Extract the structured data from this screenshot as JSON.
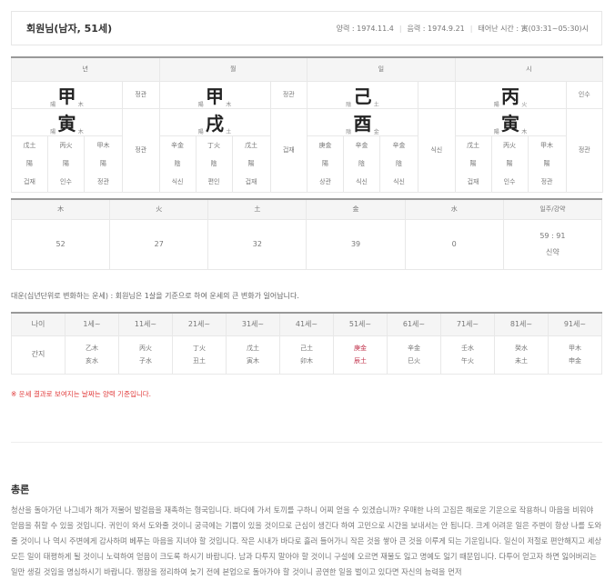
{
  "header": {
    "name": "회원님(남자, 51세)",
    "solar": "양력 : 1974.11.4",
    "lunar": "음력 : 1974.9.21",
    "birth_time": "태어난 시간 : 寅(03:31~05:30)시"
  },
  "pillars": [
    {
      "title": "년",
      "stem": "甲",
      "stem_yy": "陽",
      "stem_el": "木",
      "stem_god": "정관",
      "branch": "寅",
      "branch_yy": "陽",
      "branch_el": "木",
      "branch_god": "정관",
      "hidden": [
        {
          "gan": "戊土",
          "yy": "陽",
          "god": "겁재"
        },
        {
          "gan": "丙火",
          "yy": "陽",
          "god": "인수"
        },
        {
          "gan": "甲木",
          "yy": "陽",
          "god": "정관"
        }
      ]
    },
    {
      "title": "월",
      "stem": "甲",
      "stem_yy": "陽",
      "stem_el": "木",
      "stem_god": "정관",
      "branch": "戌",
      "branch_yy": "陽",
      "branch_el": "土",
      "branch_god": "겁재",
      "hidden": [
        {
          "gan": "辛金",
          "yy": "陰",
          "god": "식신"
        },
        {
          "gan": "丁火",
          "yy": "陰",
          "god": "편인"
        },
        {
          "gan": "戊土",
          "yy": "陽",
          "god": "겁재"
        }
      ]
    },
    {
      "title": "일",
      "stem": "己",
      "stem_yy": "陰",
      "stem_el": "土",
      "stem_god": "",
      "branch": "酉",
      "branch_yy": "陰",
      "branch_el": "金",
      "branch_god": "식신",
      "hidden": [
        {
          "gan": "庚金",
          "yy": "陽",
          "god": "상관"
        },
        {
          "gan": "辛金",
          "yy": "陰",
          "god": "식신"
        },
        {
          "gan": "辛金",
          "yy": "陰",
          "god": "식신"
        }
      ]
    },
    {
      "title": "시",
      "stem": "丙",
      "stem_yy": "陽",
      "stem_el": "火",
      "stem_god": "인수",
      "branch": "寅",
      "branch_yy": "陽",
      "branch_el": "木",
      "branch_god": "정관",
      "hidden": [
        {
          "gan": "戊土",
          "yy": "陽",
          "god": "겁재"
        },
        {
          "gan": "丙火",
          "yy": "陽",
          "god": "인수"
        },
        {
          "gan": "甲木",
          "yy": "陽",
          "god": "정관"
        }
      ]
    }
  ],
  "elements": {
    "headers": [
      "木",
      "火",
      "土",
      "金",
      "水",
      "일주/강약"
    ],
    "values": [
      "52",
      "27",
      "32",
      "39",
      "0"
    ],
    "ratio": "59 : 91",
    "strength": "신약"
  },
  "daewoon": {
    "intro": "대운(십년단위로 변화하는 운세) : 회원님은 1살을 기준으로 하여 운세의 큰 변화가 일어납니다.",
    "age_label": "나이",
    "ganji_label": "간지",
    "items": [
      {
        "age": "1세~",
        "gan": "乙木",
        "ji": "亥水"
      },
      {
        "age": "11세~",
        "gan": "丙火",
        "ji": "子水"
      },
      {
        "age": "21세~",
        "gan": "丁火",
        "ji": "丑土"
      },
      {
        "age": "31세~",
        "gan": "戊土",
        "ji": "寅木"
      },
      {
        "age": "41세~",
        "gan": "己土",
        "ji": "卯木"
      },
      {
        "age": "51세~",
        "gan": "庚金",
        "ji": "辰土",
        "current": true
      },
      {
        "age": "61세~",
        "gan": "辛金",
        "ji": "巳火"
      },
      {
        "age": "71세~",
        "gan": "壬水",
        "ji": "午火"
      },
      {
        "age": "81세~",
        "gan": "癸水",
        "ji": "未土"
      },
      {
        "age": "91세~",
        "gan": "甲木",
        "ji": "申金"
      }
    ],
    "highlight_color": "#c0304a"
  },
  "note": "※ 운세 결과로 보여지는 날짜는 양력 기준입니다.",
  "summary": {
    "title": "총론",
    "text": "청산을 돌아가던 나그네가 해가 저물어 발걸음을 재촉하는 형국입니다. 바다에 가서 토끼를 구하니 어찌 얻을 수 있겠습니까? 우매한 나의 고집은 해로운 기운으로 작용하니 마음을 비워야 얻음을 취할 수 있을 것입니다. 귀인이 와서 도와줄 것이니 궁극에는 기쁨이 있을 것이므로 근심이 생긴다 하여 고민으로 시간을 보내서는 안 됩니다. 크게 어려운 일은 주변이 항상 나를 도와줄 것이니 나 역시 주변에게 감사하며 베푸는 마음을 지녀야 할 것입니다. 작은 시내가 바다로 흘러 들어가니 작은 것을 쌓아 큰 것을 이루게 되는 기운입니다. 일신이 저절로 편안해지고 세상 모든 일이 태평하게 될 것이니 노력하여 얻음이 크도록 하시기 바랍니다. 남과 다투지 말아야 할 것이니 구설에 오르면 재물도 잃고 명예도 잃기 때문입니다. 다투어 얻고자 하면 잃어버리는 일만 생길 것임을 명심하시기 바랍니다. 행장을 정리하여 늦기 전에 본업으로 돌아가야 할 것이니 공연한 일을 벌이고 있다면 자신의 능력을 먼저"
  }
}
